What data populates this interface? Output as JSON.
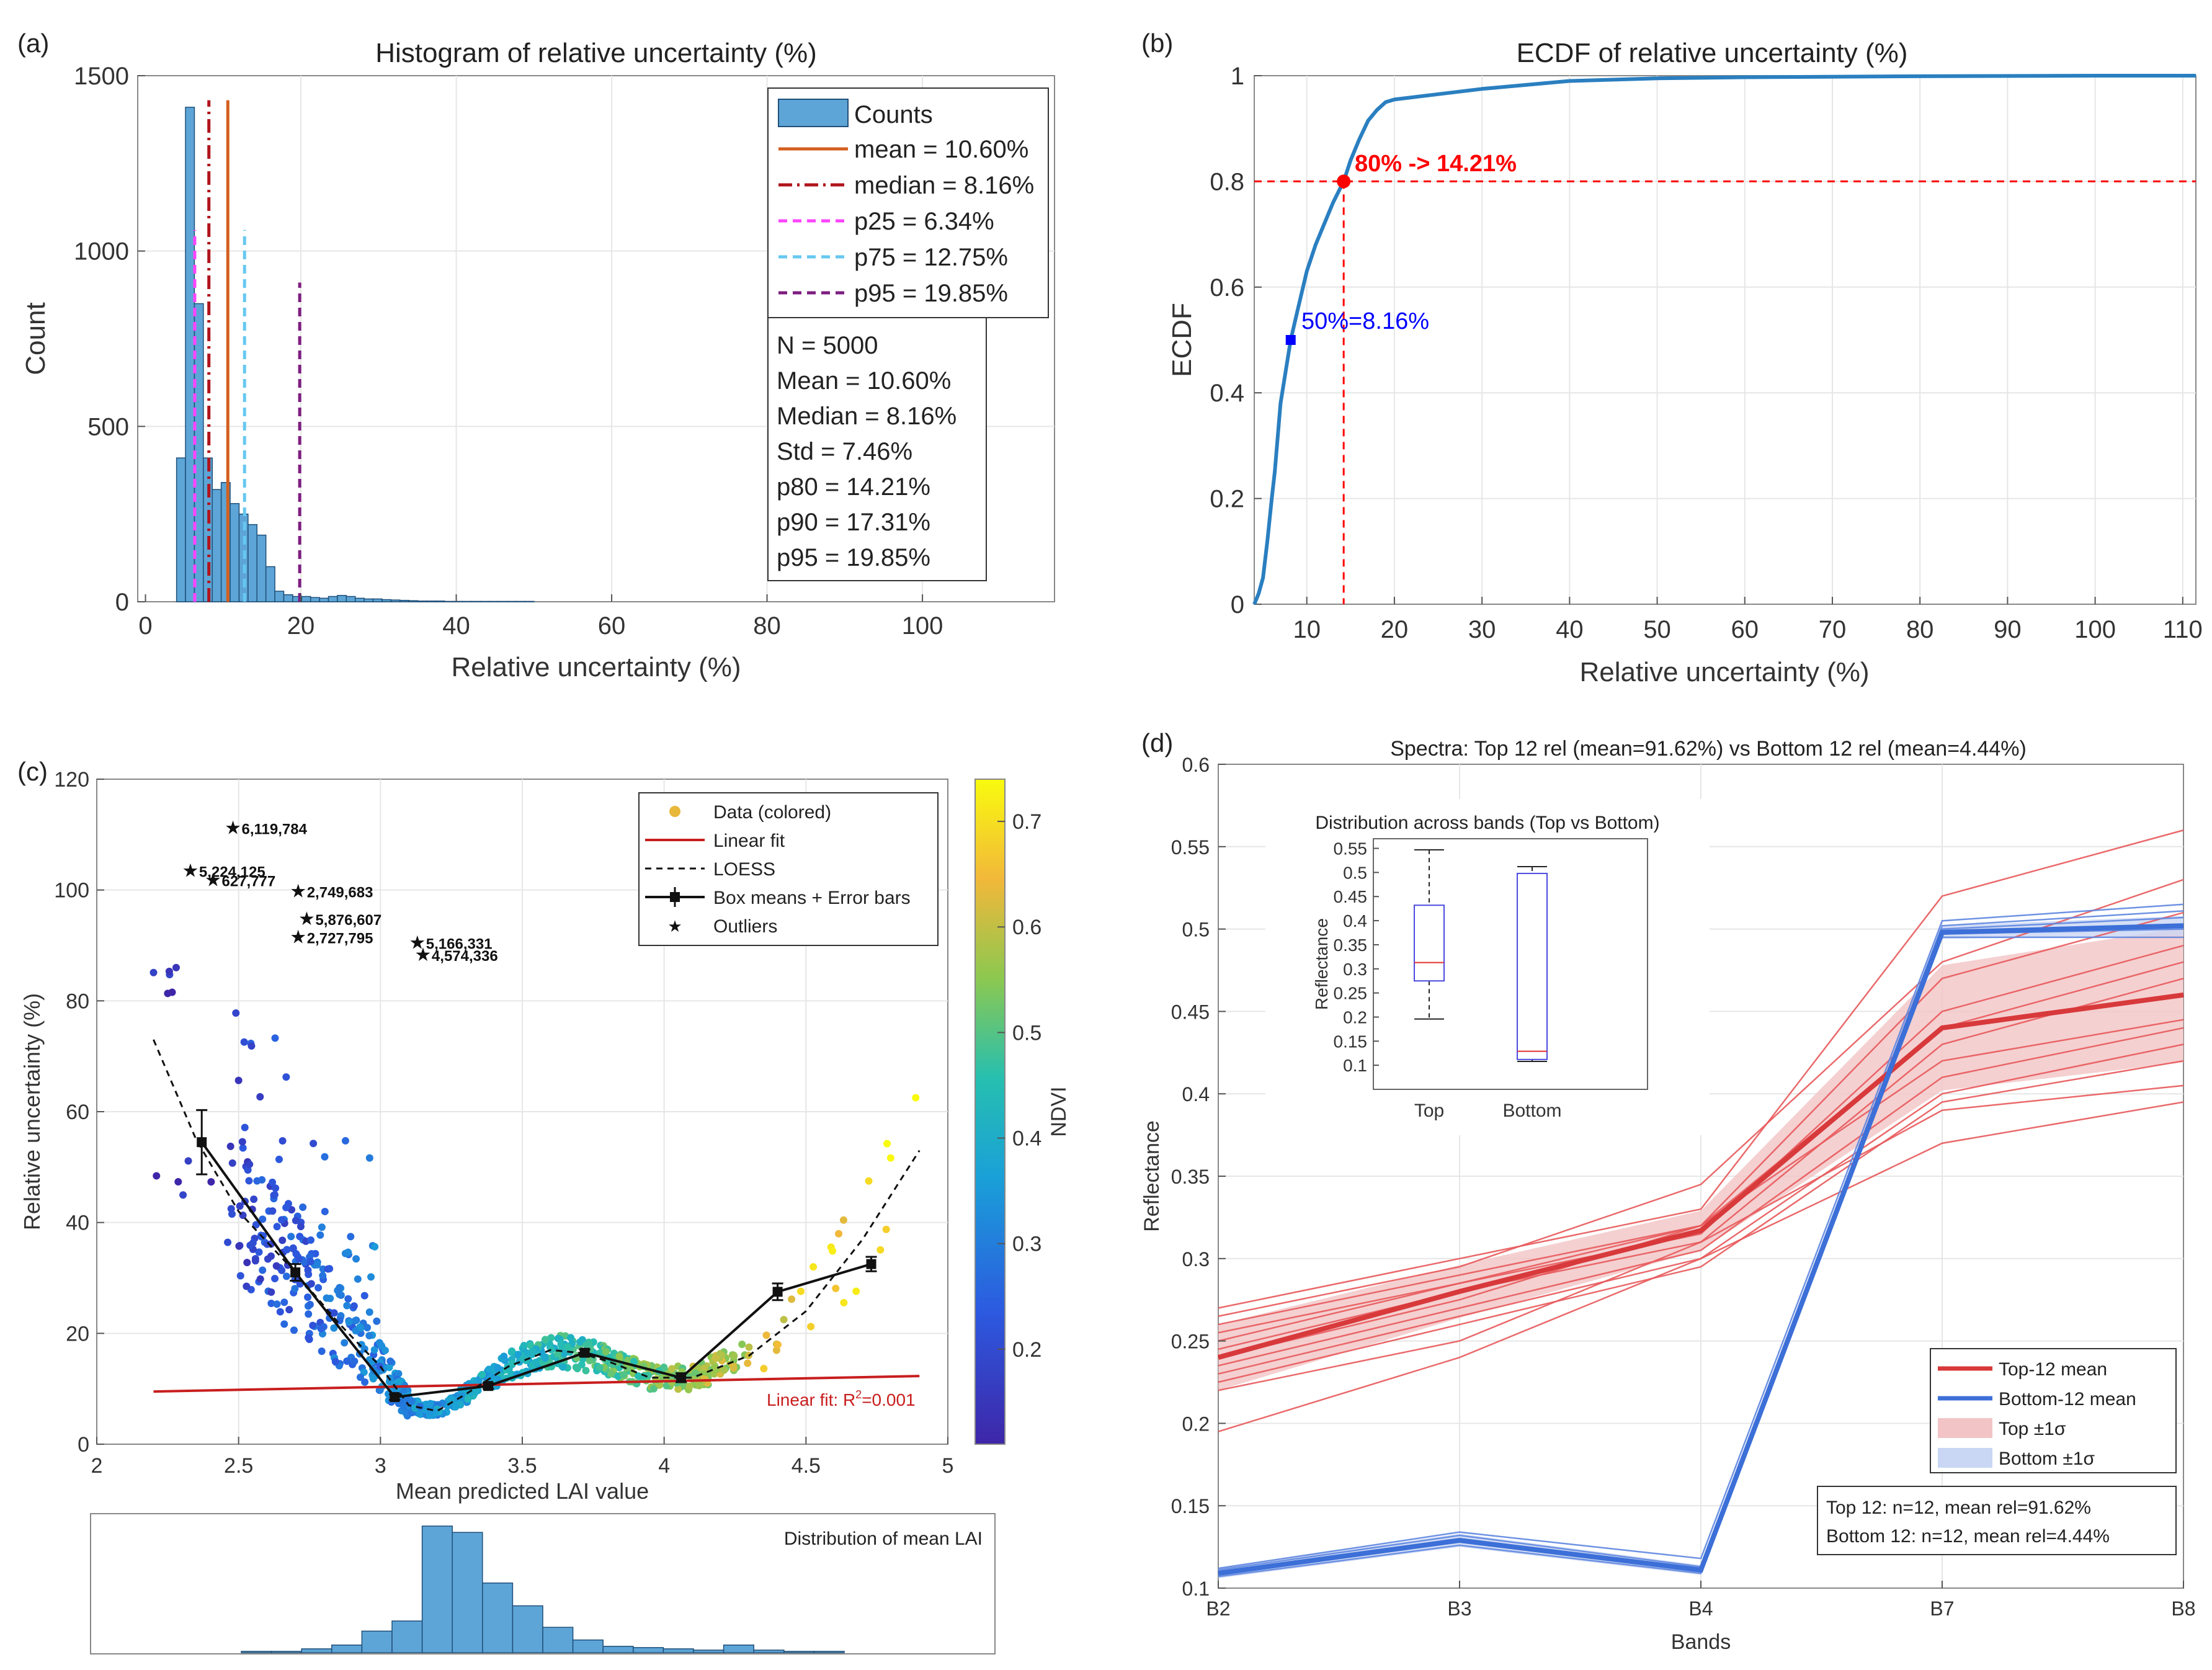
{
  "colors": {
    "bar": "#5DA5D6",
    "bar_edge": "#1F4F7A",
    "mean": "#D45F1E",
    "median": "#B0141B",
    "p25": "#FF44FF",
    "p75": "#66C8F0",
    "p95": "#7E1E80",
    "ecdf": "#2A7FC0",
    "red": "#FF0000",
    "blue": "#0000FF",
    "top": "#D8393B",
    "bottom": "#3C6FD7",
    "top_band": "#F2C4C6",
    "bottom_band": "#C9D6F4",
    "grid": "#E6E6E6"
  },
  "chart_data": [
    {
      "panel": "(a)",
      "type": "bar",
      "title": "Histogram of relative uncertainty (%)",
      "xlabel": "Relative uncertainty (%)",
      "ylabel": "Count",
      "xlim": [
        -1,
        117
      ],
      "ylim": [
        0,
        1500
      ],
      "xticks": [
        "0",
        "20",
        "40",
        "60",
        "80",
        "100"
      ],
      "yticks": [
        "0",
        "500",
        "1000",
        "1500"
      ],
      "bin_start": 4,
      "bin_width": 1.15,
      "values": [
        410,
        1410,
        850,
        410,
        320,
        340,
        280,
        250,
        220,
        190,
        100,
        30,
        20,
        15,
        15,
        12,
        10,
        15,
        18,
        15,
        10,
        8,
        8,
        6,
        5,
        4,
        3,
        2,
        2,
        2,
        1,
        1,
        1,
        1,
        1,
        1,
        1,
        1,
        1,
        1
      ],
      "vlines": [
        {
          "label": "mean = 10.60%",
          "x": 10.6,
          "top": 1430,
          "style": "solid",
          "color_key": "mean"
        },
        {
          "label": "median = 8.16%",
          "x": 8.16,
          "top": 1430,
          "style": "dashdot",
          "color_key": "median"
        },
        {
          "label": "p25 = 6.34%",
          "x": 6.34,
          "top": 1060,
          "style": "dash",
          "color_key": "p25"
        },
        {
          "label": "p75 = 12.75%",
          "x": 12.75,
          "top": 1060,
          "style": "dash",
          "color_key": "p75"
        },
        {
          "label": "p95 = 19.85%",
          "x": 19.85,
          "top": 910,
          "style": "dash",
          "color_key": "p95"
        }
      ],
      "legend": {
        "bars": "Counts"
      },
      "stats": [
        "N = 5000",
        "Mean = 10.60%",
        "Median = 8.16%",
        "Std = 7.46%",
        "p80 = 14.21%",
        " p90 = 17.31%",
        " p95 = 19.85%"
      ]
    },
    {
      "panel": "(b)",
      "type": "line",
      "title": "ECDF of relative uncertainty (%)",
      "xlabel": "Relative uncertainty (%)",
      "ylabel": "ECDF",
      "xlim": [
        4,
        111.5
      ],
      "ylim": [
        0,
        1
      ],
      "xticks": [
        "10",
        "20",
        "30",
        "40",
        "50",
        "60",
        "70",
        "80",
        "90",
        "100",
        "110"
      ],
      "yticks": [
        "0",
        "0.2",
        "0.4",
        "0.6",
        "0.8",
        "1"
      ],
      "x": [
        4,
        4.5,
        5,
        5.5,
        6,
        6.34,
        7,
        8.16,
        9,
        10,
        10.6,
        11,
        12,
        12.75,
        13,
        14.21,
        15,
        16,
        17,
        18,
        19,
        20,
        25,
        30,
        40,
        50,
        60,
        80,
        100,
        111.5
      ],
      "y": [
        0,
        0.02,
        0.05,
        0.12,
        0.2,
        0.25,
        0.38,
        0.5,
        0.56,
        0.63,
        0.66,
        0.68,
        0.72,
        0.75,
        0.76,
        0.8,
        0.84,
        0.88,
        0.915,
        0.935,
        0.95,
        0.955,
        0.965,
        0.975,
        0.99,
        0.995,
        0.997,
        0.999,
        1,
        1
      ],
      "annotations": {
        "p80": "80% -> 14.21%",
        "p50": "50%=8.16%"
      }
    },
    {
      "panel": "(c)",
      "type": "scatter",
      "xlabel": "Mean predicted LAI value",
      "ylabel": "Relative uncertainty (%)",
      "xlim": [
        2,
        5
      ],
      "ylim": [
        0,
        120
      ],
      "xticks": [
        "2",
        "2.5",
        "3",
        "3.5",
        "4",
        "4.5",
        "5"
      ],
      "yticks": [
        "0",
        "20",
        "40",
        "60",
        "80",
        "100",
        "120"
      ],
      "colorbar": {
        "label": "NDVI",
        "ticks": [
          "0.2",
          "0.3",
          "0.4",
          "0.5",
          "0.6",
          "0.7"
        ],
        "range": [
          0.11,
          0.74
        ]
      },
      "linear_fit": {
        "x": [
          2.2,
          4.9
        ],
        "y": [
          9.5,
          12.3
        ],
        "label": "Linear fit: R",
        "label_sup": "2",
        "label_tail": "=0.001"
      },
      "loess": {
        "x": [
          2.2,
          2.35,
          2.5,
          2.7,
          2.85,
          3.0,
          3.1,
          3.2,
          3.3,
          3.45,
          3.6,
          3.7,
          3.8,
          3.95,
          4.1,
          4.3,
          4.5,
          4.7,
          4.9
        ],
        "y": [
          73,
          55,
          42,
          31,
          22,
          14,
          7,
          6,
          9,
          14,
          17,
          16.5,
          15,
          12,
          12,
          16,
          24,
          37,
          53
        ]
      },
      "box_means": {
        "x": [
          2.37,
          2.7,
          3.05,
          3.38,
          3.72,
          4.06,
          4.4,
          4.73
        ],
        "y": [
          54.5,
          31,
          8.5,
          10.5,
          16.5,
          12,
          27.5,
          32.5
        ],
        "err": [
          5.8,
          1.5,
          0.5,
          0.5,
          0.6,
          0.8,
          1.5,
          1.3
        ]
      },
      "outliers": [
        {
          "label": "6,119,784",
          "x": 2.48,
          "y": 111.2
        },
        {
          "label": "5,224,125",
          "x": 2.33,
          "y": 103.5
        },
        {
          "label": "627,777",
          "x": 2.41,
          "y": 101.8
        },
        {
          "label": "2,749,683",
          "x": 2.71,
          "y": 99.8
        },
        {
          "label": "5,876,607",
          "x": 2.74,
          "y": 94.8
        },
        {
          "label": "2,727,795",
          "x": 2.71,
          "y": 91.5
        },
        {
          "label": "5,166,331",
          "x": 3.13,
          "y": 90.5
        },
        {
          "label": "4,574,336",
          "x": 3.15,
          "y": 88.3
        }
      ],
      "legend": [
        "Data (colored)",
        "Linear fit",
        "LOESS",
        "Box means + Error bars",
        "Outliers"
      ],
      "inset": {
        "title": "Distribution of mean LAI",
        "x_start": 2.5,
        "bin_width": 0.1,
        "values": [
          1,
          1,
          3,
          6,
          17,
          25,
          100,
          95,
          55,
          37,
          20,
          10,
          5,
          4,
          3,
          2,
          6,
          2,
          1,
          1
        ]
      }
    },
    {
      "panel": "(d)",
      "type": "line",
      "title": "Spectra: Top 12 rel (mean=91.62%) vs Bottom 12 rel (mean=4.44%)",
      "xlabel": "Bands",
      "ylabel": "Reflectance",
      "categories": [
        "B2",
        "B3",
        "B4",
        "B7",
        "B8"
      ],
      "ylim": [
        0.1,
        0.6
      ],
      "yticks": [
        "0.1",
        "0.15",
        "0.2",
        "0.25",
        "0.3",
        "0.35",
        "0.4",
        "0.45",
        "0.5",
        "0.55",
        "0.6"
      ],
      "series": [
        {
          "name": "Top-12 mean",
          "values": [
            0.24,
            0.28,
            0.317,
            0.44,
            0.46
          ]
        },
        {
          "name": "Bottom-12 mean",
          "values": [
            0.109,
            0.129,
            0.111,
            0.498,
            0.502
          ]
        }
      ],
      "top_sigma": [
        0.02,
        0.016,
        0.012,
        0.038,
        0.041
      ],
      "bottom_sigma": [
        0.003,
        0.004,
        0.003,
        0.004,
        0.006
      ],
      "top_individual": [
        [
          0.27,
          0.3,
          0.33,
          0.52,
          0.56
        ],
        [
          0.265,
          0.295,
          0.345,
          0.48,
          0.53
        ],
        [
          0.26,
          0.29,
          0.32,
          0.47,
          0.51
        ],
        [
          0.255,
          0.285,
          0.315,
          0.45,
          0.49
        ],
        [
          0.25,
          0.285,
          0.32,
          0.44,
          0.48
        ],
        [
          0.245,
          0.28,
          0.31,
          0.43,
          0.47
        ],
        [
          0.24,
          0.275,
          0.32,
          0.42,
          0.445
        ],
        [
          0.235,
          0.27,
          0.305,
          0.41,
          0.44
        ],
        [
          0.23,
          0.265,
          0.3,
          0.4,
          0.43
        ],
        [
          0.225,
          0.26,
          0.295,
          0.395,
          0.42
        ],
        [
          0.22,
          0.25,
          0.31,
          0.39,
          0.405
        ],
        [
          0.195,
          0.24,
          0.3,
          0.37,
          0.395
        ]
      ],
      "bottom_individual": [
        [
          0.107,
          0.126,
          0.109,
          0.495,
          0.495
        ],
        [
          0.108,
          0.128,
          0.11,
          0.497,
          0.5
        ],
        [
          0.109,
          0.129,
          0.111,
          0.498,
          0.503
        ],
        [
          0.11,
          0.13,
          0.112,
          0.5,
          0.507
        ],
        [
          0.111,
          0.132,
          0.113,
          0.502,
          0.511
        ],
        [
          0.112,
          0.134,
          0.118,
          0.505,
          0.515
        ]
      ],
      "legend": [
        "Top-12 mean",
        "Bottom-12 mean",
        "Top ±1σ",
        "Bottom ±1σ"
      ],
      "summary": [
        "Top 12: n=12, mean rel=91.62%",
        "Bottom 12: n=12, mean rel=4.44%"
      ],
      "inset": {
        "title": "Distribution across bands (Top vs Bottom)",
        "ylabel": "Reflectance",
        "categories": [
          "Top",
          "Bottom"
        ],
        "ylim": [
          0.05,
          0.57
        ],
        "yticks": [
          "0.1",
          "0.15",
          "0.2",
          "0.25",
          "0.3",
          "0.35",
          "0.4",
          "0.45",
          "0.5",
          "0.55"
        ],
        "boxes": [
          {
            "name": "Top",
            "min": 0.196,
            "q1": 0.275,
            "median": 0.313,
            "q3": 0.432,
            "max": 0.547
          },
          {
            "name": "Bottom",
            "min": 0.108,
            "q1": 0.112,
            "median": 0.129,
            "q3": 0.498,
            "max": 0.512
          }
        ]
      }
    }
  ]
}
